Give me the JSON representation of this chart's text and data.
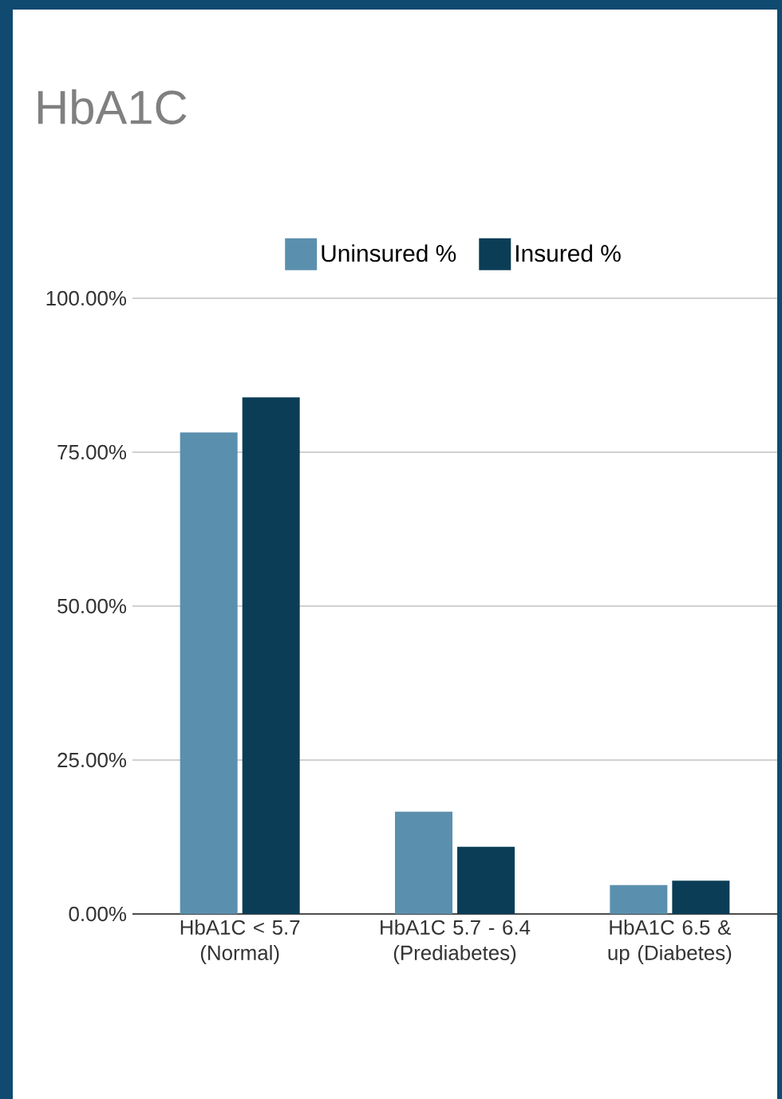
{
  "chart_data": {
    "type": "bar",
    "title": "HbA1C",
    "categories": [
      "HbA1C < 5.7 (Normal)",
      "HbA1C 5.7 - 6.4 (Prediabetes)",
      "HbA1C 6.5 & up (Diabetes)"
    ],
    "series": [
      {
        "name": "Uninsured %",
        "color": "#5b8fae",
        "values": [
          78.2,
          16.6,
          4.7
        ]
      },
      {
        "name": "Insured %",
        "color": "#0b3d57",
        "values": [
          83.9,
          10.9,
          5.4
        ]
      }
    ],
    "ylim": [
      0,
      100
    ],
    "yticks": [
      {
        "value": 0,
        "label": "0.00%"
      },
      {
        "value": 25,
        "label": "25.00%"
      },
      {
        "value": 50,
        "label": "50.00%"
      },
      {
        "value": 75,
        "label": "75.00%"
      },
      {
        "value": 100,
        "label": "100.00%"
      }
    ],
    "grid": "y",
    "legend": "top"
  }
}
